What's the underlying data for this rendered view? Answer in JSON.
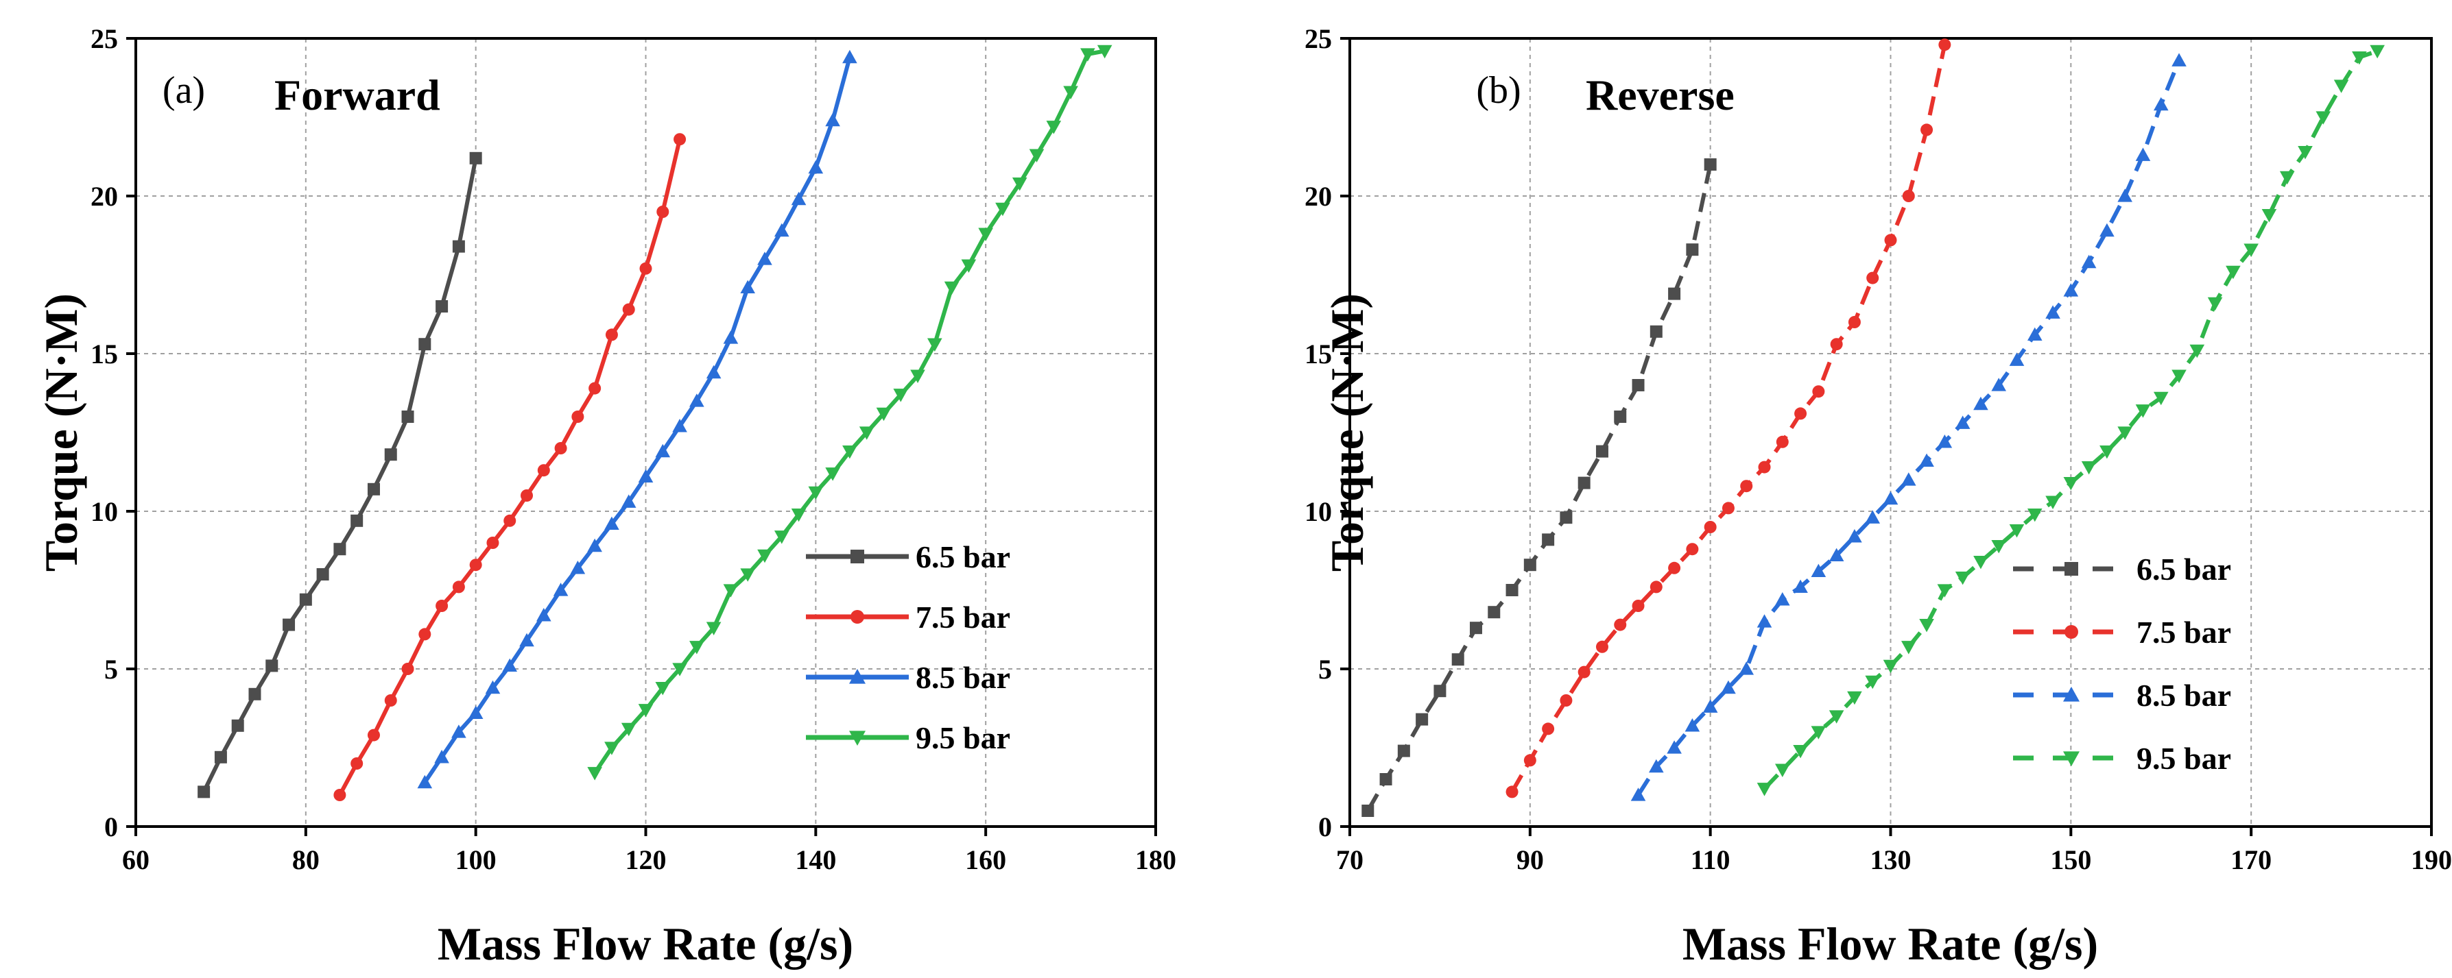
{
  "chart_data": [
    {
      "type": "line",
      "panel_tag": "(a)",
      "title": "Forward",
      "xlabel": "Mass Flow Rate (g/s)",
      "ylabel": "Torque (N·M)",
      "xlim": [
        60,
        180
      ],
      "ylim": [
        0,
        25
      ],
      "xticks": [
        "60",
        "80",
        "100",
        "120",
        "140",
        "160",
        "180"
      ],
      "yticks": [
        "0",
        "5",
        "10",
        "15",
        "20",
        "25"
      ],
      "grid": true,
      "line_style": "solid",
      "legend_position": "bottom-right",
      "series": [
        {
          "name": "6.5 bar",
          "color": "#4d4d4d",
          "marker": "square",
          "x": [
            68,
            70,
            72,
            74,
            76,
            78,
            80,
            82,
            84,
            86,
            88,
            90,
            92,
            94,
            96,
            98,
            100
          ],
          "y": [
            1.1,
            2.2,
            3.2,
            4.2,
            5.1,
            6.4,
            7.2,
            8.0,
            8.8,
            9.7,
            10.7,
            11.8,
            13.0,
            15.3,
            16.5,
            18.4,
            21.2
          ]
        },
        {
          "name": "7.5 bar",
          "color": "#e8322c",
          "marker": "circle",
          "x": [
            84,
            86,
            88,
            90,
            92,
            94,
            96,
            98,
            100,
            102,
            104,
            106,
            108,
            110,
            112,
            114,
            116,
            118,
            120,
            122,
            124
          ],
          "y": [
            1.0,
            2.0,
            2.9,
            4.0,
            5.0,
            6.1,
            7.0,
            7.6,
            8.3,
            9.0,
            9.7,
            10.5,
            11.3,
            12.0,
            13.0,
            13.9,
            15.6,
            16.4,
            17.7,
            19.5,
            21.8
          ]
        },
        {
          "name": "8.5 bar",
          "color": "#2a6ed8",
          "marker": "triangle-up",
          "x": [
            94,
            96,
            98,
            100,
            102,
            104,
            106,
            108,
            110,
            112,
            114,
            116,
            118,
            120,
            122,
            124,
            126,
            128,
            130,
            132,
            134,
            136,
            138,
            140,
            142,
            144
          ],
          "y": [
            1.4,
            2.2,
            3.0,
            3.6,
            4.4,
            5.1,
            5.9,
            6.7,
            7.5,
            8.2,
            8.9,
            9.6,
            10.3,
            11.1,
            11.9,
            12.7,
            13.5,
            14.4,
            15.5,
            17.1,
            18.0,
            18.9,
            19.9,
            20.9,
            22.4,
            24.4
          ]
        },
        {
          "name": "9.5 bar",
          "color": "#2fb64a",
          "marker": "triangle-down",
          "x": [
            114,
            116,
            118,
            120,
            122,
            124,
            126,
            128,
            130,
            132,
            134,
            136,
            138,
            140,
            142,
            144,
            146,
            148,
            150,
            152,
            154,
            156,
            158,
            160,
            162,
            164,
            166,
            168,
            170,
            172,
            174
          ],
          "y": [
            1.7,
            2.5,
            3.1,
            3.7,
            4.4,
            5.0,
            5.7,
            6.3,
            7.5,
            8.0,
            8.6,
            9.2,
            9.9,
            10.6,
            11.2,
            11.9,
            12.5,
            13.1,
            13.7,
            14.3,
            15.3,
            17.1,
            17.8,
            18.8,
            19.6,
            20.4,
            21.3,
            22.2,
            23.3,
            24.5,
            24.6
          ]
        }
      ]
    },
    {
      "type": "line",
      "panel_tag": "(b)",
      "title": "Reverse",
      "xlabel": "Mass Flow Rate (g/s)",
      "ylabel": "Torque (N·M)",
      "xlim": [
        70,
        190
      ],
      "ylim": [
        0,
        25
      ],
      "xticks": [
        "70",
        "90",
        "110",
        "130",
        "150",
        "170",
        "190"
      ],
      "yticks": [
        "0",
        "5",
        "10",
        "15",
        "20",
        "25"
      ],
      "grid": true,
      "line_style": "dashed",
      "legend_position": "bottom-right",
      "series": [
        {
          "name": "6.5 bar",
          "color": "#4d4d4d",
          "marker": "square",
          "x": [
            72,
            74,
            76,
            78,
            80,
            82,
            84,
            86,
            88,
            90,
            92,
            94,
            96,
            98,
            100,
            102,
            104,
            106,
            108,
            110
          ],
          "y": [
            0.5,
            1.5,
            2.4,
            3.4,
            4.3,
            5.3,
            6.3,
            6.8,
            7.5,
            8.3,
            9.1,
            9.8,
            10.9,
            11.9,
            13.0,
            14.0,
            15.7,
            16.9,
            18.3,
            21.0
          ]
        },
        {
          "name": "7.5 bar",
          "color": "#e8322c",
          "marker": "circle",
          "x": [
            88,
            90,
            92,
            94,
            96,
            98,
            100,
            102,
            104,
            106,
            108,
            110,
            112,
            114,
            116,
            118,
            120,
            122,
            124,
            126,
            128,
            130,
            132,
            134,
            136
          ],
          "y": [
            1.1,
            2.1,
            3.1,
            4.0,
            4.9,
            5.7,
            6.4,
            7.0,
            7.6,
            8.2,
            8.8,
            9.5,
            10.1,
            10.8,
            11.4,
            12.2,
            13.1,
            13.8,
            15.3,
            16.0,
            17.4,
            18.6,
            20.0,
            22.1,
            24.8
          ]
        },
        {
          "name": "8.5 bar",
          "color": "#2a6ed8",
          "marker": "triangle-up",
          "x": [
            102,
            104,
            106,
            108,
            110,
            112,
            114,
            116,
            118,
            120,
            122,
            124,
            126,
            128,
            130,
            132,
            134,
            136,
            138,
            140,
            142,
            144,
            146,
            148,
            150,
            152,
            154,
            156,
            158,
            160,
            162
          ],
          "y": [
            1.0,
            1.9,
            2.5,
            3.2,
            3.8,
            4.4,
            5.0,
            6.5,
            7.2,
            7.6,
            8.1,
            8.6,
            9.2,
            9.8,
            10.4,
            11.0,
            11.6,
            12.2,
            12.8,
            13.4,
            14.0,
            14.8,
            15.6,
            16.3,
            17.0,
            17.9,
            18.9,
            20.0,
            21.3,
            22.9,
            24.3
          ]
        },
        {
          "name": "9.5 bar",
          "color": "#2fb64a",
          "marker": "triangle-down",
          "x": [
            116,
            118,
            120,
            122,
            124,
            126,
            128,
            130,
            132,
            134,
            136,
            138,
            140,
            142,
            144,
            146,
            148,
            150,
            152,
            154,
            156,
            158,
            160,
            162,
            164,
            166,
            168,
            170,
            172,
            174,
            176,
            178,
            180,
            182,
            184
          ],
          "y": [
            1.2,
            1.8,
            2.4,
            3.0,
            3.5,
            4.1,
            4.6,
            5.1,
            5.7,
            6.4,
            7.5,
            7.9,
            8.4,
            8.9,
            9.4,
            9.9,
            10.3,
            10.9,
            11.4,
            11.9,
            12.5,
            13.2,
            13.6,
            14.3,
            15.1,
            16.6,
            17.6,
            18.3,
            19.4,
            20.6,
            21.4,
            22.5,
            23.5,
            24.4,
            24.6
          ]
        }
      ]
    }
  ]
}
